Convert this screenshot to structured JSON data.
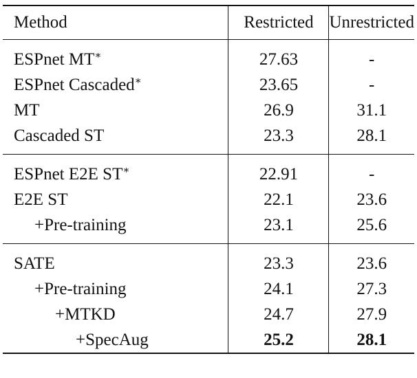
{
  "table": {
    "header": [
      "Method",
      "Restricted",
      "Unrestricted"
    ],
    "groups": [
      [
        {
          "method": "ESPnet MT",
          "mark": "∗",
          "restricted": "27.63",
          "unrestricted": "-"
        },
        {
          "method": "ESPnet Cascaded",
          "mark": "∗",
          "restricted": "23.65",
          "unrestricted": "-"
        },
        {
          "method": "MT",
          "restricted": "26.9",
          "unrestricted": "31.1"
        },
        {
          "method": "Cascaded ST",
          "restricted": "23.3",
          "unrestricted": "28.1"
        }
      ],
      [
        {
          "method": "ESPnet E2E ST",
          "mark": "∗",
          "restricted": "22.91",
          "unrestricted": "-"
        },
        {
          "method": "E2E ST",
          "restricted": "22.1",
          "unrestricted": "23.6"
        },
        {
          "method": "+Pre-training",
          "restricted": "23.1",
          "unrestricted": "25.6"
        }
      ],
      [
        {
          "method": "SATE",
          "restricted": "23.3",
          "unrestricted": "23.6"
        },
        {
          "method": "+Pre-training",
          "restricted": "24.1",
          "unrestricted": "27.3"
        },
        {
          "method": "+MTKD",
          "restricted": "24.7",
          "unrestricted": "27.9"
        },
        {
          "method": "+SpecAug",
          "restricted": "25.2",
          "unrestricted": "28.1"
        }
      ]
    ]
  }
}
